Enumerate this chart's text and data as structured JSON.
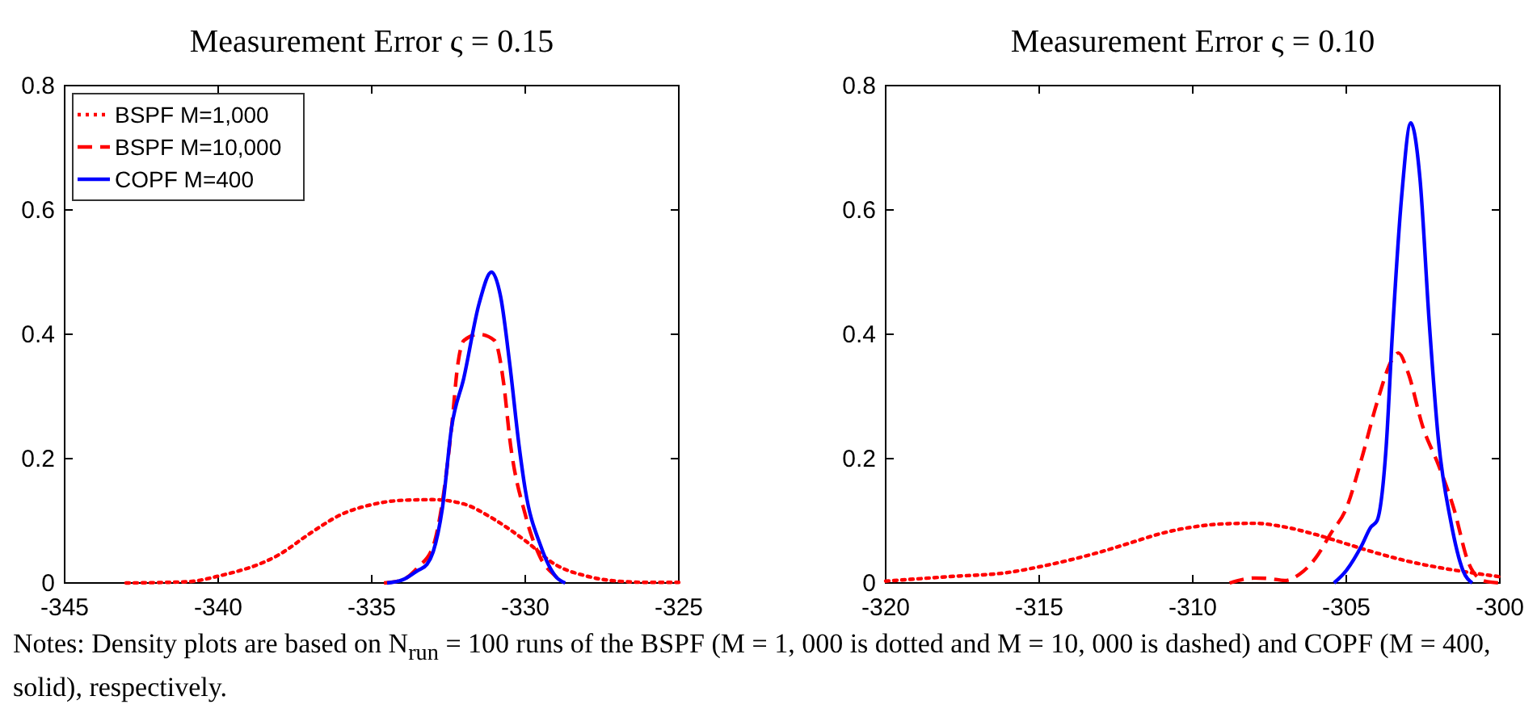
{
  "chart_data": [
    {
      "type": "line",
      "title": "Measurement Error ς = 0.15",
      "xlim": [
        -345,
        -325
      ],
      "xticks": [
        -345,
        -340,
        -335,
        -330,
        -325
      ],
      "ylim": [
        0,
        0.8
      ],
      "yticks": [
        0,
        0.2,
        0.4,
        0.6,
        0.8
      ],
      "grid": false,
      "legend": "top left",
      "annotations": [
        "Notes: Density plots are based on N$_{run}$ = 100 runs of the BSPF (M = 1, 000 is dotted and M = 10, 000 is dashed) and COPF (M = 400, solid), respectively."
      ],
      "series": [
        {
          "name": "BSPF M=1,000",
          "color": "#ff0000",
          "line_style": "dotted",
          "x": [
            -343,
            -341,
            -340,
            -338,
            -337,
            -336,
            -335,
            -334,
            -333,
            -332,
            -331,
            -330,
            -329,
            -328,
            -327,
            -326,
            -325
          ],
          "values": [
            0,
            0.002,
            0.011,
            0.046,
            0.08,
            0.11,
            0.126,
            0.133,
            0.134,
            0.127,
            0.102,
            0.068,
            0.029,
            0.011,
            0.003,
            0.001,
            0.001
          ]
        },
        {
          "name": "BSPF M=10,000",
          "color": "#ff0000",
          "line_style": "dashed",
          "x": [
            -334.6,
            -334,
            -333.5,
            -333,
            -332.7,
            -332.4,
            -332.2,
            -332,
            -331.5,
            -331,
            -330.7,
            -330.5,
            -330,
            -329.5,
            -329,
            -328.8
          ],
          "values": [
            0,
            0.005,
            0.025,
            0.059,
            0.13,
            0.25,
            0.35,
            0.39,
            0.4,
            0.39,
            0.32,
            0.23,
            0.11,
            0.04,
            0.01,
            0
          ]
        },
        {
          "name": "COPF M=400",
          "color": "#0000ff",
          "line_style": "solid",
          "x": [
            -334.5,
            -334,
            -333.5,
            -333.2,
            -333,
            -332.7,
            -332.4,
            -332,
            -331.5,
            -331.1,
            -330.8,
            -330.5,
            -330.2,
            -330,
            -329.5,
            -329,
            -328.7
          ],
          "values": [
            0,
            0.005,
            0.02,
            0.03,
            0.05,
            0.12,
            0.25,
            0.33,
            0.45,
            0.5,
            0.46,
            0.35,
            0.22,
            0.15,
            0.06,
            0.01,
            0
          ]
        }
      ]
    },
    {
      "type": "line",
      "title": "Measurement Error ς = 0.10",
      "xlim": [
        -320,
        -300
      ],
      "xticks": [
        -320,
        -315,
        -310,
        -305,
        -300
      ],
      "ylim": [
        0,
        0.8
      ],
      "yticks": [
        0,
        0.2,
        0.4,
        0.6,
        0.8
      ],
      "grid": false,
      "series": [
        {
          "color": "#ff0000",
          "line_style": "dotted",
          "x": [
            -320,
            -318,
            -316,
            -315,
            -314,
            -313,
            -312,
            -311,
            -310,
            -309,
            -308,
            -307,
            -306,
            -305,
            -304,
            -303,
            -302,
            -301,
            -300
          ],
          "values": [
            0.003,
            0.01,
            0.017,
            0.026,
            0.037,
            0.05,
            0.065,
            0.08,
            0.09,
            0.095,
            0.096,
            0.09,
            0.078,
            0.063,
            0.048,
            0.035,
            0.025,
            0.017,
            0.01
          ]
        },
        {
          "color": "#ff0000",
          "line_style": "dashed",
          "x": [
            -308.8,
            -308,
            -307.5,
            -307,
            -306.5,
            -306,
            -305.5,
            -305,
            -304.5,
            -304,
            -303.5,
            -303.3,
            -303,
            -302.5,
            -302,
            -301.5,
            -301,
            -300.5,
            -300
          ],
          "values": [
            0,
            0.008,
            0.007,
            0.004,
            0.015,
            0.04,
            0.08,
            0.12,
            0.2,
            0.29,
            0.36,
            0.37,
            0.34,
            0.25,
            0.19,
            0.12,
            0.03,
            0.003,
            0
          ]
        },
        {
          "color": "#0000ff",
          "line_style": "solid",
          "x": [
            -305.4,
            -305,
            -304.5,
            -304.2,
            -304,
            -303.7,
            -303.5,
            -303.2,
            -302.9,
            -302.6,
            -302.3,
            -302,
            -301.6,
            -301.2,
            -300.9
          ],
          "values": [
            0,
            0.02,
            0.06,
            0.09,
            0.1,
            0.22,
            0.4,
            0.62,
            0.74,
            0.65,
            0.42,
            0.23,
            0.1,
            0.02,
            0
          ]
        }
      ]
    }
  ]
}
